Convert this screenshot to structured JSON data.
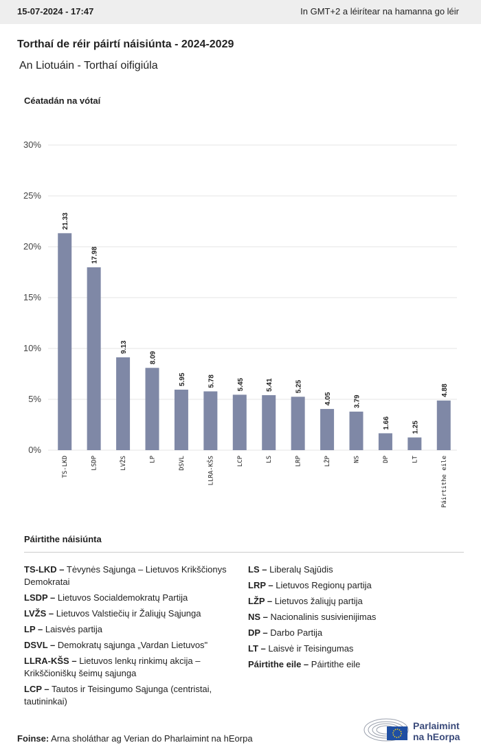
{
  "header": {
    "timestamp": "15-07-2024 - 17:47",
    "timezone_note": "In GMT+2 a léirítear na hamanna go léir"
  },
  "chart_data": {
    "type": "bar",
    "title": "Torthaí de réir páirtí náisiúnta - 2024-2029",
    "subtitle": "An Liotuáin - Torthaí oifigiúla",
    "y_axis_title": "Céatadán na vótaí",
    "categories": [
      "TS-LKD",
      "LSDP",
      "LVŽS",
      "LP",
      "DSVL",
      "LLRA-KŠS",
      "LCP",
      "LS",
      "LRP",
      "LŽP",
      "NS",
      "DP",
      "LT",
      "Páirtithe eile"
    ],
    "values": [
      21.33,
      17.98,
      9.13,
      8.09,
      5.95,
      5.78,
      5.45,
      5.41,
      5.25,
      4.05,
      3.79,
      1.66,
      1.25,
      4.88
    ],
    "color": "#7f88a6",
    "ylim": [
      0,
      30
    ],
    "yticks": [
      {
        "value": 0,
        "label": "0%"
      },
      {
        "value": 5,
        "label": "5%"
      },
      {
        "value": 10,
        "label": "10%"
      },
      {
        "value": 15,
        "label": "15%"
      },
      {
        "value": 20,
        "label": "20%"
      },
      {
        "value": 25,
        "label": "25%"
      },
      {
        "value": 30,
        "label": "30%"
      }
    ],
    "grid": true
  },
  "legend": {
    "title": "Páirtithe náisiúnta",
    "entries": [
      {
        "key": "TS-LKD –",
        "name": "Tėvynės Sąjunga – Lietuvos Krikščionys Demokratai"
      },
      {
        "key": "LSDP –",
        "name": "Lietuvos Socialdemokratų Partija"
      },
      {
        "key": "LVŽS –",
        "name": "Lietuvos Valstiečių ir Žaliųjų Sąjunga"
      },
      {
        "key": "LP –",
        "name": "Laisvės partija"
      },
      {
        "key": "DSVL –",
        "name": "Demokratų sąjunga „Vardan Lietuvos\""
      },
      {
        "key": "LLRA-KŠS –",
        "name": "Lietuvos lenkų rinkimų akcija – Krikščioniškų šeimų sąjunga"
      },
      {
        "key": "LCP –",
        "name": "Tautos ir Teisingumo Sąjunga (centristai, tautininkai)"
      },
      {
        "key": "LS –",
        "name": "Liberalų Sąjūdis"
      },
      {
        "key": "LRP –",
        "name": "Lietuvos Regionų partija"
      },
      {
        "key": "LŽP –",
        "name": "Lietuvos žaliųjų partija"
      },
      {
        "key": "NS –",
        "name": "Nacionalinis susivienijimas"
      },
      {
        "key": "DP –",
        "name": "Darbo Partija"
      },
      {
        "key": "LT –",
        "name": "Laisvė ir Teisingumas"
      },
      {
        "key": "Páirtithe eile –",
        "name": "Páirtithe eile"
      }
    ]
  },
  "footer": {
    "source_label": "Foinse:",
    "source": "Arna sholáthar ag Verian do Pharlaimint na hEorpa",
    "logo_lines": [
      "Parlaimint",
      "na hEorpa"
    ]
  }
}
